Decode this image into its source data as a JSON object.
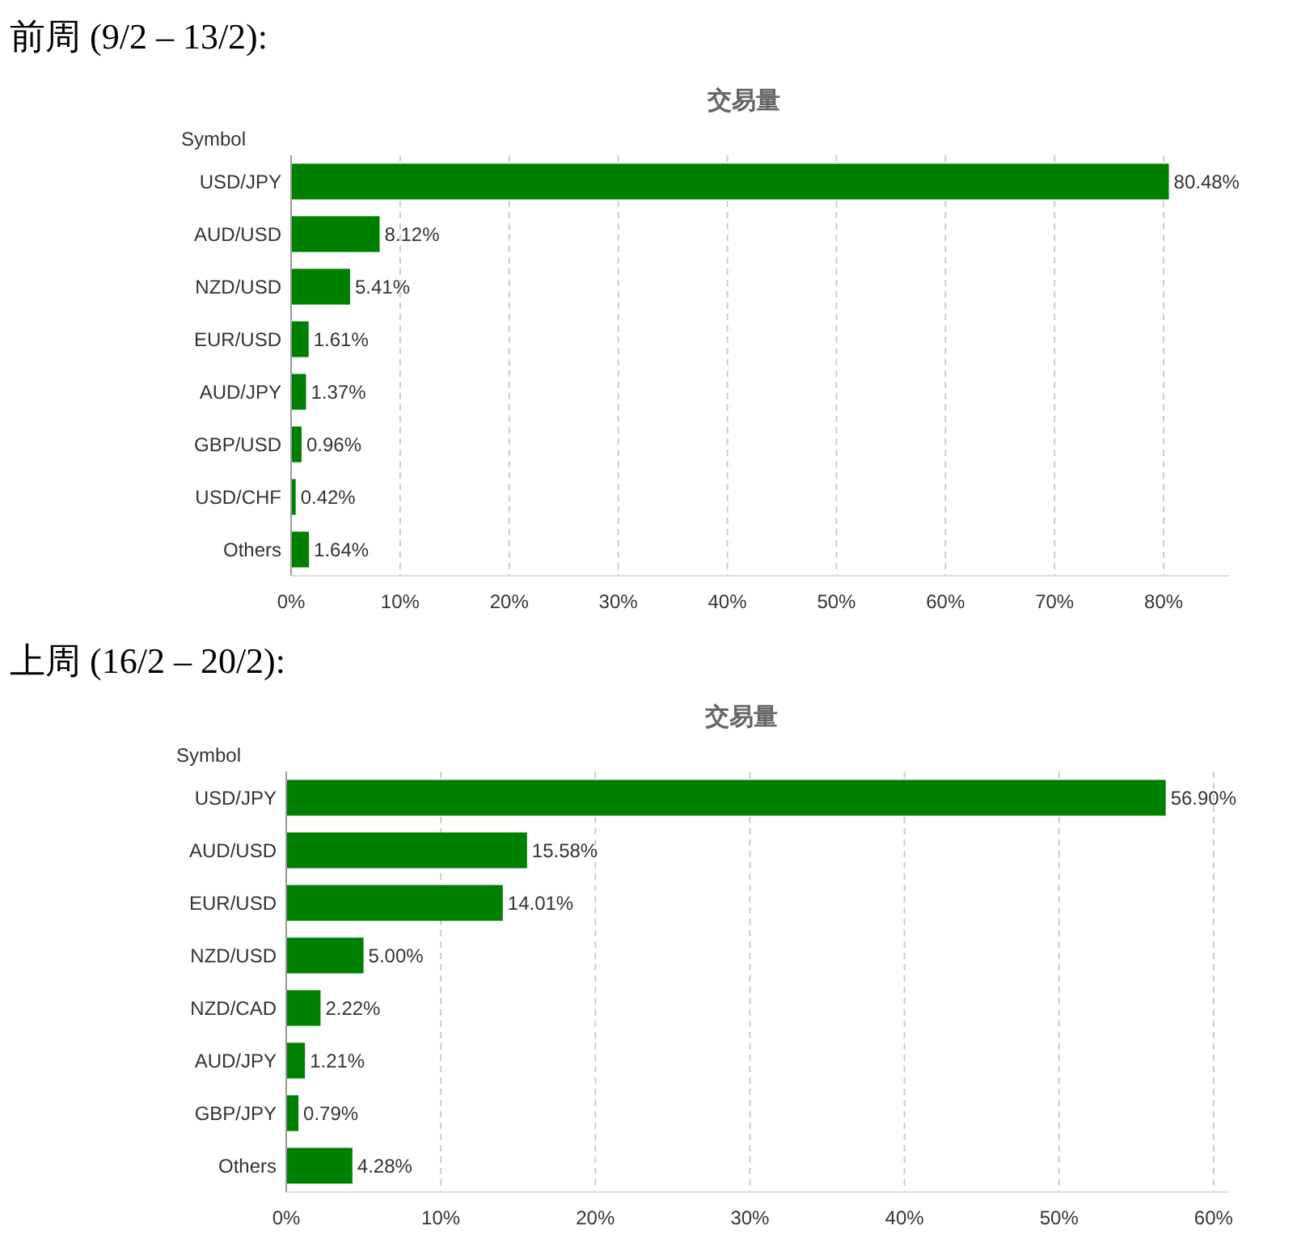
{
  "chart_data": [
    {
      "type": "bar",
      "orientation": "horizontal",
      "title": "前周 (9/2 – 13/2):",
      "subtitle": "交易量",
      "ylabel": "Symbol",
      "categories": [
        "USD/JPY",
        "AUD/USD",
        "NZD/USD",
        "EUR/USD",
        "AUD/JPY",
        "GBP/USD",
        "USD/CHF",
        "Others"
      ],
      "values": [
        80.48,
        8.12,
        5.41,
        1.61,
        1.37,
        0.96,
        0.42,
        1.64
      ],
      "value_labels": [
        "80.48%",
        "8.12%",
        "5.41%",
        "1.61%",
        "1.37%",
        "0.96%",
        "0.42%",
        "1.64%"
      ],
      "color": "#008000",
      "xlim": [
        0,
        86
      ],
      "xticks": [
        {
          "value": 0,
          "label": "0%"
        },
        {
          "value": 10,
          "label": "10%"
        },
        {
          "value": 20,
          "label": "20%"
        },
        {
          "value": 30,
          "label": "30%"
        },
        {
          "value": 40,
          "label": "40%"
        },
        {
          "value": 50,
          "label": "50%"
        },
        {
          "value": 60,
          "label": "60%"
        },
        {
          "value": 70,
          "label": "70%"
        },
        {
          "value": 80,
          "label": "80%"
        }
      ],
      "grid": "x"
    },
    {
      "type": "bar",
      "orientation": "horizontal",
      "title": "上周 (16/2 – 20/2):",
      "subtitle": "交易量",
      "ylabel": "Symbol",
      "categories": [
        "USD/JPY",
        "AUD/USD",
        "EUR/USD",
        "NZD/USD",
        "NZD/CAD",
        "AUD/JPY",
        "GBP/JPY",
        "Others"
      ],
      "values": [
        56.9,
        15.58,
        14.01,
        5.0,
        2.22,
        1.21,
        0.79,
        4.28
      ],
      "value_labels": [
        "56.90%",
        "15.58%",
        "14.01%",
        "5.00%",
        "2.22%",
        "1.21%",
        "0.79%",
        "4.28%"
      ],
      "color": "#008000",
      "xlim": [
        0,
        61
      ],
      "xticks": [
        {
          "value": 0,
          "label": "0%"
        },
        {
          "value": 10,
          "label": "10%"
        },
        {
          "value": 20,
          "label": "20%"
        },
        {
          "value": 30,
          "label": "30%"
        },
        {
          "value": 40,
          "label": "40%"
        },
        {
          "value": 50,
          "label": "50%"
        },
        {
          "value": 60,
          "label": "60%"
        }
      ],
      "grid": "x"
    }
  ]
}
